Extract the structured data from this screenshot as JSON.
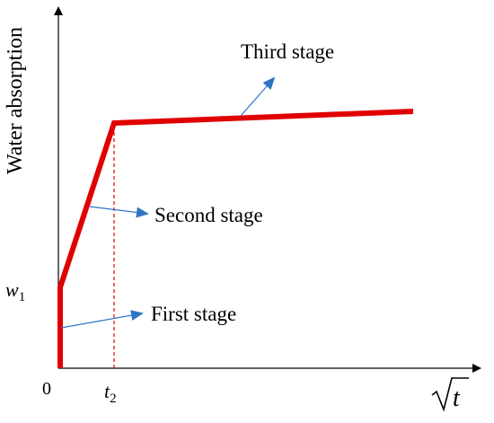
{
  "chart_data": {
    "type": "line",
    "title": "",
    "ylabel": "Water absorption",
    "xlabel_symbol": "t",
    "origin_label": "0",
    "y_marker": {
      "base": "w",
      "sub": "1"
    },
    "x_marker": {
      "base": "t",
      "sub": "2"
    },
    "series": [
      {
        "points": [
          [
            0,
            0
          ],
          [
            0,
            0.32
          ],
          [
            0.2,
            1.0
          ],
          [
            1.3,
            1.05
          ]
        ]
      }
    ],
    "annotations": [
      {
        "label": "First stage"
      },
      {
        "label": "Second stage"
      },
      {
        "label": "Third stage"
      }
    ],
    "colors": {
      "line": "#e00000",
      "arrow": "#2e75c6",
      "axis": "#000000",
      "guide": "#e00000"
    }
  }
}
